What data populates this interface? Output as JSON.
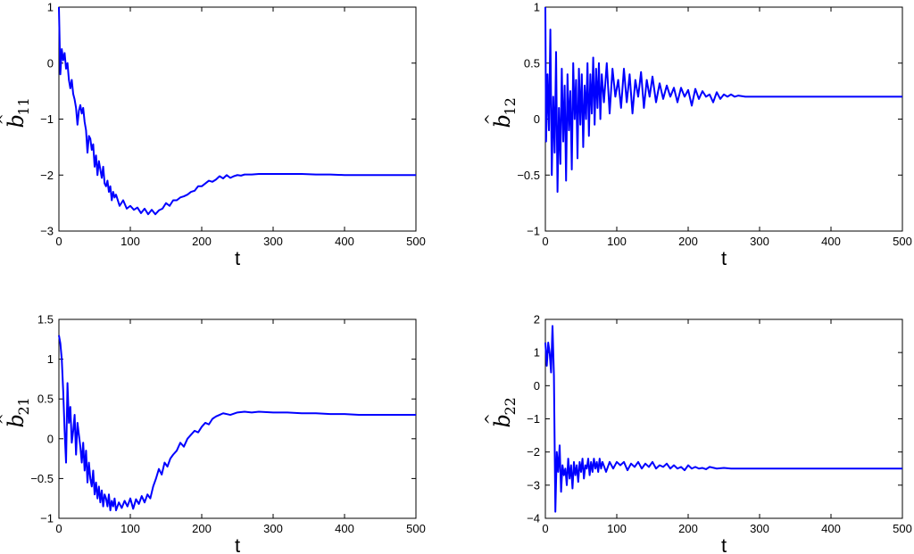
{
  "chart_data": [
    {
      "type": "line",
      "ylabel": {
        "base": "b",
        "hat": "^",
        "sub": "11"
      },
      "xlabel": "t",
      "xlim": [
        0,
        500
      ],
      "ylim": [
        -3,
        1
      ],
      "xticks": [
        0,
        100,
        200,
        300,
        400,
        500
      ],
      "yticks": [
        -3,
        -2,
        -1,
        0,
        1
      ],
      "ytick_labels": [
        "−3",
        "−2",
        "−1",
        "0",
        "1"
      ],
      "series_color": "#0000ff",
      "series": [
        {
          "x": [
            0,
            2,
            4,
            6,
            8,
            10,
            12,
            14,
            16,
            18,
            20,
            22,
            24,
            26,
            28,
            30,
            32,
            34,
            36,
            38,
            40,
            42,
            44,
            46,
            48,
            50,
            52,
            54,
            56,
            58,
            60,
            62,
            64,
            66,
            68,
            70,
            72,
            74,
            76,
            78,
            80,
            85,
            90,
            95,
            100,
            105,
            110,
            115,
            120,
            125,
            130,
            135,
            140,
            145,
            150,
            155,
            160,
            165,
            170,
            175,
            180,
            185,
            190,
            195,
            200,
            205,
            210,
            215,
            220,
            225,
            230,
            235,
            240,
            245,
            250,
            255,
            260,
            270,
            280,
            290,
            300,
            320,
            340,
            360,
            380,
            400,
            420,
            440,
            460,
            480,
            500
          ],
          "y": [
            1.0,
            -0.2,
            0.25,
            0.05,
            0.18,
            -0.1,
            0.0,
            -0.3,
            -0.45,
            -0.3,
            -0.55,
            -0.65,
            -0.8,
            -1.1,
            -0.85,
            -0.75,
            -0.9,
            -0.8,
            -1.05,
            -1.2,
            -1.6,
            -1.3,
            -1.35,
            -1.55,
            -1.45,
            -1.85,
            -1.65,
            -2.0,
            -1.75,
            -1.9,
            -2.05,
            -1.85,
            -2.15,
            -2.2,
            -2.1,
            -2.3,
            -2.2,
            -2.45,
            -2.3,
            -2.4,
            -2.35,
            -2.55,
            -2.45,
            -2.6,
            -2.55,
            -2.62,
            -2.58,
            -2.68,
            -2.6,
            -2.7,
            -2.62,
            -2.7,
            -2.63,
            -2.6,
            -2.5,
            -2.55,
            -2.45,
            -2.45,
            -2.4,
            -2.38,
            -2.35,
            -2.3,
            -2.28,
            -2.2,
            -2.2,
            -2.15,
            -2.1,
            -2.12,
            -2.08,
            -2.02,
            -2.06,
            -2.0,
            -2.05,
            -2.02,
            -2.0,
            -2.01,
            -1.99,
            -1.99,
            -1.98,
            -1.98,
            -1.98,
            -1.98,
            -1.98,
            -1.99,
            -1.99,
            -2.0,
            -2.0,
            -2.0,
            -2.0,
            -2.0,
            -2.0
          ]
        }
      ]
    },
    {
      "type": "line",
      "ylabel": {
        "base": "b",
        "hat": "^",
        "sub": "12"
      },
      "xlabel": "t",
      "xlim": [
        0,
        500
      ],
      "ylim": [
        -1,
        1
      ],
      "xticks": [
        0,
        100,
        200,
        300,
        400,
        500
      ],
      "yticks": [
        -1,
        -0.5,
        0,
        0.5,
        1
      ],
      "ytick_labels": [
        "−1",
        "−0.5",
        "0",
        "0.5",
        "1"
      ],
      "series_color": "#0000ff",
      "series": [
        {
          "x": [
            0,
            1,
            3,
            5,
            7,
            9,
            11,
            13,
            15,
            17,
            19,
            21,
            23,
            25,
            27,
            29,
            31,
            33,
            35,
            37,
            39,
            41,
            43,
            45,
            47,
            49,
            51,
            53,
            55,
            57,
            59,
            61,
            63,
            65,
            67,
            69,
            71,
            73,
            75,
            77,
            79,
            82,
            86,
            90,
            94,
            98,
            102,
            106,
            110,
            114,
            118,
            122,
            126,
            130,
            134,
            138,
            142,
            146,
            150,
            155,
            160,
            165,
            170,
            175,
            180,
            185,
            190,
            195,
            200,
            205,
            210,
            215,
            220,
            225,
            230,
            235,
            240,
            245,
            250,
            255,
            260,
            265,
            270,
            280,
            290,
            300,
            320,
            340,
            360,
            380,
            400,
            420,
            440,
            460,
            480,
            500
          ],
          "y": [
            1.0,
            -0.2,
            0.4,
            -0.1,
            0.8,
            -0.5,
            0.2,
            -0.3,
            0.6,
            -0.65,
            0.1,
            -0.4,
            0.45,
            -0.2,
            0.3,
            -0.55,
            0.4,
            -0.1,
            0.25,
            -0.45,
            0.5,
            0.0,
            0.35,
            -0.35,
            0.45,
            -0.05,
            0.4,
            -0.25,
            0.3,
            0.0,
            0.5,
            -0.15,
            0.4,
            0.05,
            0.55,
            -0.05,
            0.45,
            0.1,
            0.5,
            0.0,
            0.4,
            0.15,
            0.5,
            0.05,
            0.45,
            0.2,
            0.35,
            0.1,
            0.45,
            0.15,
            0.4,
            0.05,
            0.35,
            0.2,
            0.42,
            0.1,
            0.35,
            0.2,
            0.38,
            0.15,
            0.32,
            0.18,
            0.3,
            0.2,
            0.28,
            0.15,
            0.28,
            0.2,
            0.26,
            0.12,
            0.27,
            0.18,
            0.25,
            0.2,
            0.22,
            0.15,
            0.24,
            0.18,
            0.22,
            0.2,
            0.22,
            0.2,
            0.21,
            0.2,
            0.2,
            0.2,
            0.2,
            0.2,
            0.2,
            0.2,
            0.2,
            0.2,
            0.2,
            0.2,
            0.2,
            0.2
          ]
        }
      ]
    },
    {
      "type": "line",
      "ylabel": {
        "base": "b",
        "hat": "^",
        "sub": "21"
      },
      "xlabel": "t",
      "xlim": [
        0,
        500
      ],
      "ylim": [
        -1,
        1.5
      ],
      "xticks": [
        0,
        100,
        200,
        300,
        400,
        500
      ],
      "yticks": [
        -1,
        -0.5,
        0,
        0.5,
        1,
        1.5
      ],
      "ytick_labels": [
        "−1",
        "−0.5",
        "0",
        "0.5",
        "1",
        "1.5"
      ],
      "series_color": "#0000ff",
      "series": [
        {
          "x": [
            0,
            2,
            4,
            6,
            8,
            10,
            12,
            14,
            16,
            18,
            20,
            22,
            24,
            26,
            28,
            30,
            32,
            34,
            36,
            38,
            40,
            42,
            44,
            46,
            48,
            50,
            52,
            54,
            56,
            58,
            60,
            62,
            64,
            66,
            68,
            70,
            72,
            74,
            76,
            78,
            80,
            84,
            88,
            92,
            96,
            100,
            104,
            108,
            112,
            116,
            120,
            124,
            128,
            132,
            136,
            140,
            144,
            148,
            152,
            156,
            160,
            165,
            170,
            175,
            180,
            185,
            190,
            195,
            200,
            205,
            210,
            215,
            220,
            225,
            230,
            240,
            250,
            260,
            270,
            280,
            300,
            320,
            340,
            360,
            380,
            400,
            420,
            440,
            460,
            480,
            500
          ],
          "y": [
            1.3,
            1.2,
            1.0,
            0.6,
            0.1,
            -0.3,
            0.7,
            0.2,
            0.4,
            -0.05,
            0.1,
            0.3,
            -0.2,
            0.2,
            0.05,
            -0.1,
            -0.3,
            -0.05,
            -0.4,
            -0.15,
            -0.55,
            -0.3,
            -0.5,
            -0.6,
            -0.4,
            -0.7,
            -0.55,
            -0.75,
            -0.6,
            -0.8,
            -0.65,
            -0.85,
            -0.7,
            -0.75,
            -0.85,
            -0.7,
            -0.9,
            -0.78,
            -0.85,
            -0.75,
            -0.9,
            -0.8,
            -0.87,
            -0.78,
            -0.85,
            -0.75,
            -0.88,
            -0.76,
            -0.82,
            -0.72,
            -0.8,
            -0.7,
            -0.75,
            -0.6,
            -0.5,
            -0.38,
            -0.45,
            -0.3,
            -0.35,
            -0.25,
            -0.2,
            -0.15,
            -0.05,
            -0.1,
            0.0,
            0.05,
            0.1,
            0.08,
            0.15,
            0.2,
            0.18,
            0.25,
            0.28,
            0.3,
            0.32,
            0.3,
            0.33,
            0.34,
            0.33,
            0.34,
            0.33,
            0.33,
            0.32,
            0.32,
            0.31,
            0.31,
            0.3,
            0.3,
            0.3,
            0.3,
            0.3
          ]
        }
      ]
    },
    {
      "type": "line",
      "ylabel": {
        "base": "b",
        "hat": "^",
        "sub": "22"
      },
      "xlabel": "t",
      "xlim": [
        0,
        500
      ],
      "ylim": [
        -4,
        2
      ],
      "xticks": [
        0,
        100,
        200,
        300,
        400,
        500
      ],
      "yticks": [
        -4,
        -3,
        -2,
        -1,
        0,
        1,
        2
      ],
      "ytick_labels": [
        "−4",
        "−3",
        "−2",
        "−1",
        "0",
        "1",
        "2"
      ],
      "series_color": "#0000ff",
      "series": [
        {
          "x": [
            0,
            2,
            4,
            6,
            8,
            10,
            12,
            14,
            16,
            18,
            20,
            22,
            24,
            26,
            28,
            30,
            32,
            34,
            36,
            38,
            40,
            42,
            44,
            46,
            48,
            50,
            52,
            54,
            56,
            58,
            60,
            62,
            64,
            66,
            68,
            70,
            72,
            74,
            76,
            78,
            80,
            85,
            90,
            95,
            100,
            105,
            110,
            115,
            120,
            125,
            130,
            135,
            140,
            145,
            150,
            155,
            160,
            165,
            170,
            175,
            180,
            185,
            190,
            195,
            200,
            205,
            210,
            215,
            220,
            225,
            230,
            240,
            250,
            260,
            270,
            280,
            300,
            320,
            340,
            360,
            380,
            400,
            420,
            440,
            460,
            480,
            500
          ],
          "y": [
            1.3,
            0.6,
            1.3,
            1.0,
            0.4,
            1.8,
            0.3,
            -3.8,
            -2.0,
            -2.6,
            -1.8,
            -3.2,
            -2.4,
            -2.7,
            -2.5,
            -3.0,
            -2.2,
            -2.8,
            -2.4,
            -3.1,
            -2.3,
            -2.7,
            -2.4,
            -2.9,
            -2.3,
            -2.6,
            -2.2,
            -2.8,
            -2.4,
            -2.5,
            -2.2,
            -2.7,
            -2.3,
            -2.6,
            -2.2,
            -2.5,
            -2.3,
            -2.6,
            -2.2,
            -2.5,
            -2.3,
            -2.6,
            -2.3,
            -2.5,
            -2.3,
            -2.4,
            -2.3,
            -2.55,
            -2.35,
            -2.45,
            -2.3,
            -2.5,
            -2.35,
            -2.45,
            -2.3,
            -2.5,
            -2.4,
            -2.45,
            -2.35,
            -2.5,
            -2.4,
            -2.5,
            -2.45,
            -2.55,
            -2.4,
            -2.5,
            -2.45,
            -2.5,
            -2.48,
            -2.52,
            -2.45,
            -2.5,
            -2.48,
            -2.5,
            -2.5,
            -2.5,
            -2.5,
            -2.5,
            -2.5,
            -2.5,
            -2.5,
            -2.5,
            -2.5,
            -2.5,
            -2.5,
            -2.5,
            -2.5
          ]
        }
      ]
    }
  ]
}
